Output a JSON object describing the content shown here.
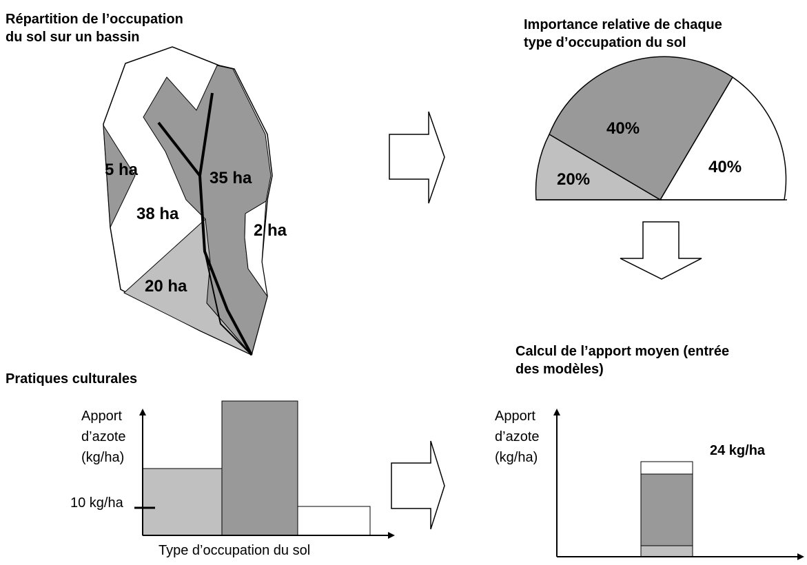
{
  "map_panel": {
    "title": [
      "Répartition de l’occupation",
      "du sol sur un bassin"
    ],
    "labels": [
      "5 ha",
      "35 ha",
      "38 ha",
      "2 ha",
      "20 ha"
    ]
  },
  "pie_panel": {
    "title": [
      "Importance relative de chaque",
      "type d’occupation du sol"
    ],
    "labels": [
      "40%",
      "40%",
      "20%"
    ]
  },
  "practices_panel": {
    "title": "Pratiques culturales",
    "y_label": [
      "Apport",
      "d’azote",
      "(kg/ha)"
    ],
    "tick_label": "10 kg/ha",
    "x_label": "Type d’occupation du sol"
  },
  "mean_panel": {
    "title": [
      "Calcul de l’apport moyen (entrée",
      "des modèles)"
    ],
    "y_label": [
      "Apport",
      "d’azote",
      "(kg/ha)"
    ],
    "result": "24 kg/ha"
  }
}
